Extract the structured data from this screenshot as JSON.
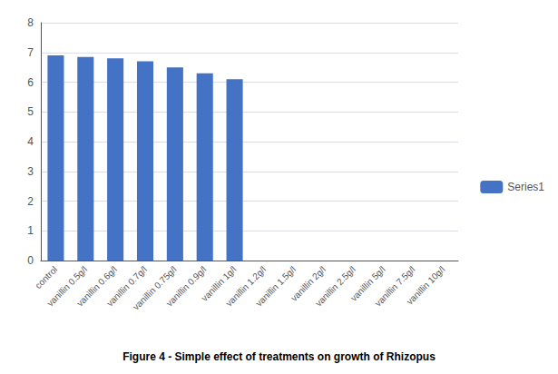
{
  "chart_data": {
    "type": "bar",
    "title": "Figure 4 - Simple effect of treatments on growth of Rhizopus",
    "categories": [
      "control",
      "vanillin 0.5g/l",
      "vanillin 0.6g/l",
      "vanillin 0.7g/l",
      "vanillin 0.75g/l",
      "vanillin 0.9g/l",
      "vanillin 1g/l",
      "vanillin 1.2g/l",
      "vanillin 1.5g/l",
      "vanillin 2g/l",
      "vanillin 2.5g/l",
      "vanillin 5g/l",
      "vanillin 7.5g/l",
      "vanillin 10g/l"
    ],
    "series": [
      {
        "name": "Series1",
        "color": "#4472C4",
        "values": [
          6.9,
          6.85,
          6.8,
          6.7,
          6.5,
          6.3,
          6.1,
          0,
          0,
          0,
          0,
          0,
          0,
          0
        ]
      }
    ],
    "ylim": [
      0,
      8
    ],
    "yticks": [
      0,
      1,
      2,
      3,
      4,
      5,
      6,
      7,
      8
    ],
    "grid": true,
    "legend": "right"
  }
}
